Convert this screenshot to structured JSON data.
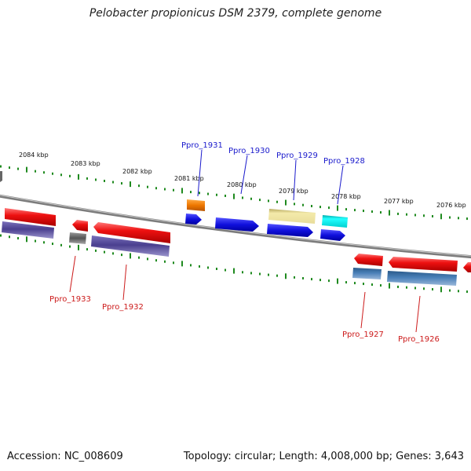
{
  "title": "Pelobacter propionicus DSM 2379, complete genome",
  "footer": {
    "accession": "Accession: NC_008609",
    "summary": "Topology: circular; Length: 4,008,000 bp; Genes: 3,643"
  },
  "scale_labels": [
    "2084 kbp",
    "2083 kbp",
    "2082 kbp",
    "2081 kbp",
    "2080 kbp",
    "2079 kbp",
    "2078 kbp",
    "2077 kbp",
    "2076 kbp"
  ],
  "gene_labels_top": [
    "Ppro_1931",
    "Ppro_1930",
    "Ppro_1929",
    "Ppro_1928"
  ],
  "gene_labels_bottom": [
    "Ppro_1933",
    "Ppro_1932",
    "Ppro_1927",
    "Ppro_1926"
  ],
  "colors": {
    "backbone": "#8a8a8a",
    "tick": "#1f8a1f",
    "top_label": "#1a1acc",
    "bottom_label": "#cc1a1a",
    "red": "#ee1111",
    "dark_blue": "#4a3f8f",
    "blue": "#1010dd",
    "orange": "#ee7700",
    "khaki": "#e8dc9a",
    "cyan": "#00e5e5",
    "steel": "#4a80b8",
    "gray": "#666666"
  }
}
